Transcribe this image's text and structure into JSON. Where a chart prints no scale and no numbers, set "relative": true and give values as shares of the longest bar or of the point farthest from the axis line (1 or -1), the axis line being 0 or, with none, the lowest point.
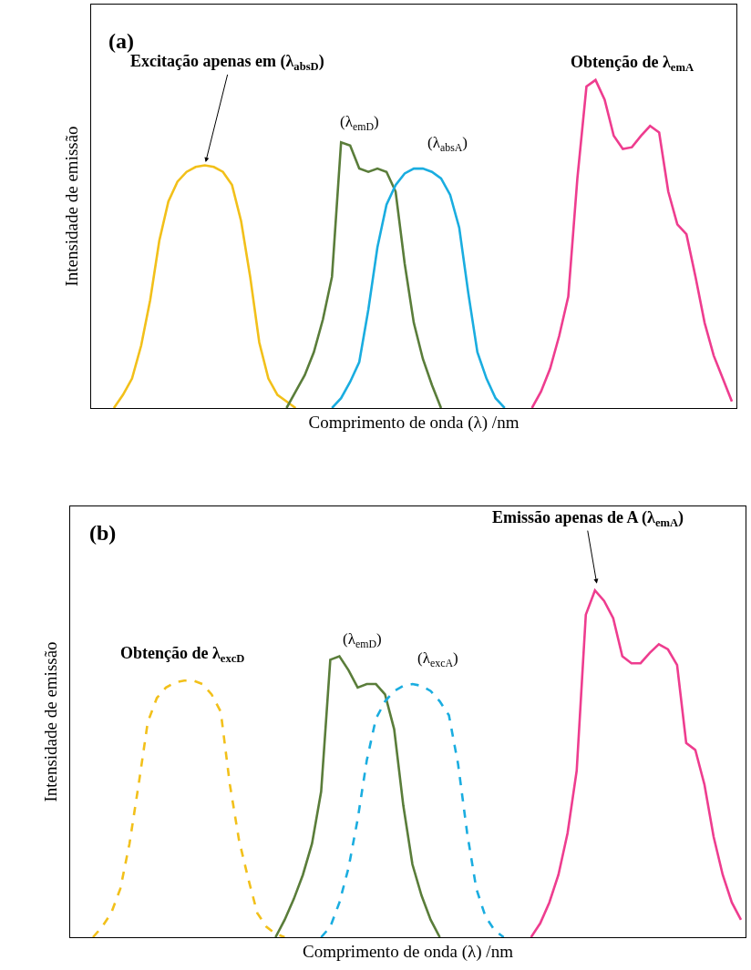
{
  "chart_data": [
    {
      "type": "line",
      "relative": true,
      "xlabel": "Comprimento de onda (λ) /nm",
      "ylabel": "Intensidade de emissão",
      "categories": [
        null,
        null,
        null,
        null,
        null,
        null,
        null,
        null,
        null,
        null,
        null,
        null,
        null,
        null,
        null,
        null,
        null,
        null,
        null,
        null,
        null,
        null,
        null,
        null,
        null,
        null,
        null,
        null,
        null,
        null,
        null,
        null,
        null,
        null,
        null,
        null,
        null,
        null,
        null,
        null,
        null,
        null,
        null,
        null,
        null,
        null,
        null,
        null,
        null,
        null,
        null,
        null,
        null,
        null,
        null,
        null,
        null,
        null,
        null,
        null,
        null,
        null,
        null,
        null,
        null,
        null,
        null,
        null,
        null,
        null,
        null
      ],
      "series": [
        {
          "color": "#f2c01a",
          "line_style": "solid",
          "values": [
            null,
            null,
            0.0,
            0.04,
            0.09,
            0.19,
            0.33,
            0.51,
            0.63,
            0.69,
            0.72,
            0.735,
            0.74,
            0.735,
            0.72,
            0.68,
            0.57,
            0.4,
            0.2,
            0.09,
            0.04,
            0.02,
            0.0,
            null,
            null,
            null,
            null,
            null,
            null,
            null,
            null,
            null,
            null,
            null,
            null,
            null,
            null,
            null,
            null,
            null,
            null,
            null,
            null,
            null,
            null,
            null,
            null,
            null,
            null,
            null,
            null,
            null,
            null,
            null,
            null,
            null,
            null,
            null,
            null,
            null,
            null,
            null,
            null,
            null,
            null,
            null,
            null,
            null,
            null,
            null,
            null
          ]
        },
        {
          "color": "#5a7d3a",
          "line_style": "solid",
          "values": [
            null,
            null,
            null,
            null,
            null,
            null,
            null,
            null,
            null,
            null,
            null,
            null,
            null,
            null,
            null,
            null,
            null,
            null,
            null,
            null,
            null,
            0.0,
            0.05,
            0.1,
            0.17,
            0.27,
            0.4,
            0.81,
            0.8,
            0.73,
            0.72,
            0.73,
            0.72,
            0.66,
            0.44,
            0.26,
            0.15,
            0.07,
            0.0,
            null,
            null,
            null,
            null,
            null,
            null,
            null,
            null,
            null,
            null,
            null,
            null,
            null,
            null,
            null,
            null,
            null,
            null,
            null,
            null,
            null,
            null,
            null,
            null,
            null,
            null,
            null,
            null,
            null,
            null,
            null,
            null
          ]
        },
        {
          "color": "#1aade0",
          "line_style": "solid",
          "values": [
            null,
            null,
            null,
            null,
            null,
            null,
            null,
            null,
            null,
            null,
            null,
            null,
            null,
            null,
            null,
            null,
            null,
            null,
            null,
            null,
            null,
            null,
            null,
            null,
            null,
            null,
            0.0,
            0.03,
            0.08,
            0.14,
            0.3,
            0.49,
            0.62,
            0.68,
            0.715,
            0.73,
            0.73,
            0.72,
            0.7,
            0.65,
            0.55,
            0.35,
            0.17,
            0.09,
            0.03,
            0.0,
            null,
            null,
            null,
            null,
            null,
            null,
            null,
            null,
            null,
            null,
            null,
            null,
            null,
            null,
            null,
            null,
            null,
            null,
            null,
            null,
            null,
            null,
            null,
            null,
            null
          ]
        },
        {
          "color": "#ee3d8f",
          "line_style": "solid",
          "values": [
            null,
            null,
            null,
            null,
            null,
            null,
            null,
            null,
            null,
            null,
            null,
            null,
            null,
            null,
            null,
            null,
            null,
            null,
            null,
            null,
            null,
            null,
            null,
            null,
            null,
            null,
            null,
            null,
            null,
            null,
            null,
            null,
            null,
            null,
            null,
            null,
            null,
            null,
            null,
            null,
            null,
            null,
            null,
            null,
            null,
            null,
            null,
            null,
            0.0,
            0.05,
            0.12,
            0.22,
            0.34,
            0.7,
            0.98,
            1.0,
            0.94,
            0.83,
            0.79,
            0.795,
            0.83,
            0.86,
            0.84,
            0.66,
            0.56,
            0.53,
            0.4,
            0.26,
            0.16,
            0.09,
            0.02
          ]
        }
      ],
      "annotations": [
        "(a)",
        "Excitação apenas em (λ$_{absD}$)",
        "(λ$_{emD}$)",
        "(λ$_{absA}$)",
        "Obtenção de λ$_{emA}$"
      ]
    },
    {
      "type": "line",
      "relative": true,
      "xlabel": "Comprimento de onda (λ) /nm",
      "ylabel": "Intensidade de emissão",
      "categories": [
        null,
        null,
        null,
        null,
        null,
        null,
        null,
        null,
        null,
        null,
        null,
        null,
        null,
        null,
        null,
        null,
        null,
        null,
        null,
        null,
        null,
        null,
        null,
        null,
        null,
        null,
        null,
        null,
        null,
        null,
        null,
        null,
        null,
        null,
        null,
        null,
        null,
        null,
        null,
        null,
        null,
        null,
        null,
        null,
        null,
        null,
        null,
        null,
        null,
        null,
        null,
        null,
        null,
        null,
        null,
        null,
        null,
        null,
        null,
        null,
        null,
        null,
        null,
        null,
        null,
        null,
        null,
        null,
        null,
        null,
        null,
        null,
        null,
        null
      ],
      "series": [
        {
          "color": "#f2c01a",
          "line_style": "dashed",
          "values": [
            null,
            null,
            0.0,
            0.03,
            0.07,
            0.14,
            0.27,
            0.44,
            0.62,
            0.69,
            0.72,
            0.735,
            0.74,
            0.74,
            0.73,
            0.7,
            0.65,
            0.44,
            0.28,
            0.17,
            0.07,
            0.03,
            0.01,
            0.0,
            null,
            null,
            null,
            null,
            null,
            null,
            null,
            null,
            null,
            null,
            null,
            null,
            null,
            null,
            null,
            null,
            null,
            null,
            null,
            null,
            null,
            null,
            null,
            null,
            null,
            null,
            null,
            null,
            null,
            null,
            null,
            null,
            null,
            null,
            null,
            null,
            null,
            null,
            null,
            null,
            null,
            null,
            null,
            null,
            null,
            null,
            null,
            null,
            null,
            null
          ]
        },
        {
          "color": "#5a7d3a",
          "line_style": "solid",
          "values": [
            null,
            null,
            null,
            null,
            null,
            null,
            null,
            null,
            null,
            null,
            null,
            null,
            null,
            null,
            null,
            null,
            null,
            null,
            null,
            null,
            null,
            null,
            0.0,
            0.05,
            0.11,
            0.18,
            0.27,
            0.42,
            0.8,
            0.81,
            0.77,
            0.72,
            0.73,
            0.73,
            0.7,
            0.6,
            0.38,
            0.21,
            0.12,
            0.05,
            0.0,
            null,
            null,
            null,
            null,
            null,
            null,
            null,
            null,
            null,
            null,
            null,
            null,
            null,
            null,
            null,
            null,
            null,
            null,
            null,
            null,
            null,
            null,
            null,
            null,
            null,
            null,
            null,
            null,
            null,
            null,
            null,
            null,
            null
          ]
        },
        {
          "color": "#1aade0",
          "line_style": "dashed",
          "values": [
            null,
            null,
            null,
            null,
            null,
            null,
            null,
            null,
            null,
            null,
            null,
            null,
            null,
            null,
            null,
            null,
            null,
            null,
            null,
            null,
            null,
            null,
            null,
            null,
            null,
            null,
            null,
            0.0,
            0.03,
            0.1,
            0.2,
            0.34,
            0.51,
            0.63,
            0.68,
            0.71,
            0.725,
            0.73,
            0.725,
            0.71,
            0.68,
            0.64,
            0.5,
            0.3,
            0.14,
            0.06,
            0.02,
            0.0,
            null,
            null,
            null,
            null,
            null,
            null,
            null,
            null,
            null,
            null,
            null,
            null,
            null,
            null,
            null,
            null,
            null,
            null,
            null,
            null,
            null,
            null,
            null,
            null,
            null,
            null
          ]
        },
        {
          "color": "#ee3d8f",
          "line_style": "solid",
          "values": [
            null,
            null,
            null,
            null,
            null,
            null,
            null,
            null,
            null,
            null,
            null,
            null,
            null,
            null,
            null,
            null,
            null,
            null,
            null,
            null,
            null,
            null,
            null,
            null,
            null,
            null,
            null,
            null,
            null,
            null,
            null,
            null,
            null,
            null,
            null,
            null,
            null,
            null,
            null,
            null,
            null,
            null,
            null,
            null,
            null,
            null,
            null,
            null,
            null,
            null,
            0.0,
            0.04,
            0.1,
            0.18,
            0.3,
            0.48,
            0.93,
            1.0,
            0.97,
            0.92,
            0.81,
            0.79,
            0.79,
            0.82,
            0.845,
            0.83,
            0.785,
            0.56,
            0.54,
            0.44,
            0.29,
            0.18,
            0.1,
            0.05
          ]
        }
      ],
      "annotations": [
        "(b)",
        "Emissão apenas de A (λ$_{emA}$)",
        "Obtenção de λ$_{excD}$",
        "(λ$_{emD}$)",
        "(λ$_{excA}$)"
      ]
    }
  ]
}
